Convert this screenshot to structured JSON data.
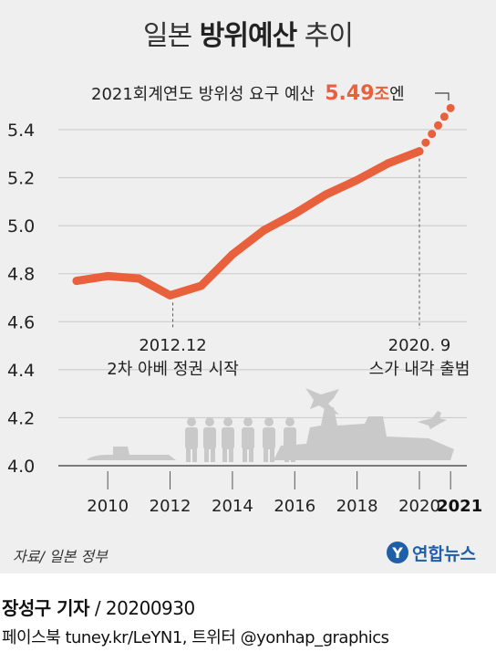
{
  "title": {
    "normal_1": "일본",
    "bold": "방위예산",
    "normal_2": "추이"
  },
  "chart_data": {
    "type": "line",
    "x": [
      2009,
      2010,
      2011,
      2012,
      2013,
      2014,
      2015,
      2016,
      2017,
      2018,
      2019,
      2020
    ],
    "values": [
      4.77,
      4.79,
      4.78,
      4.71,
      4.75,
      4.88,
      4.98,
      5.05,
      5.13,
      5.19,
      5.26,
      5.31
    ],
    "projection": {
      "from_x": 2020,
      "to_x": 2021,
      "from_y": 5.31,
      "to_y": 5.49
    },
    "xticks": [
      2010,
      2012,
      2014,
      2016,
      2018,
      2020
    ],
    "xtick_labels": [
      "2010",
      "2012",
      "2014",
      "2016",
      "2018",
      "2020"
    ],
    "xtick_bold": "2021",
    "yticks": [
      4.0,
      4.2,
      4.4,
      4.6,
      4.8,
      5.0,
      5.2,
      5.4
    ],
    "ytick_labels": [
      "4.0",
      "4.2",
      "4.4",
      "4.6",
      "4.8",
      "5.0",
      "5.2",
      "5.4"
    ],
    "ylim": [
      4.0,
      5.5
    ],
    "xlim": [
      2009,
      2021
    ],
    "line_color": "#e8603c",
    "annotations": {
      "a2012_date": "2012.12",
      "a2012_text": "2차 아베 정권 시작",
      "a2020_date": "2020. 9",
      "a2020_text": "스가 내각 출범",
      "top_prefix": "2021회계연도 방위성 요구 예산",
      "top_value": "5.49",
      "top_unit_hl": "조",
      "top_unit": "엔"
    }
  },
  "source": "자료/ 일본 정부",
  "logo": {
    "mark": "Y",
    "name": "연합뉴스"
  },
  "byline": {
    "name": "장성구 기자",
    "date": " / 20200930"
  },
  "social": "페이스북 tuney.kr/LeYN1, 트위터 @yonhap_graphics"
}
